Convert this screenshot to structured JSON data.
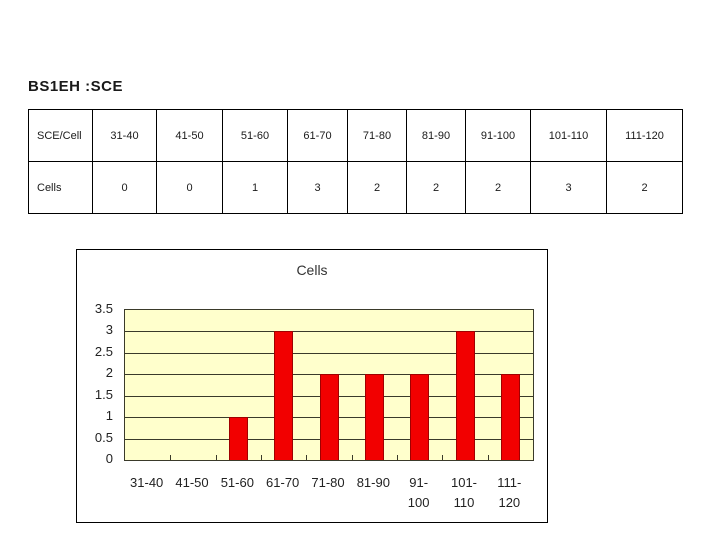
{
  "title": "BS1EH :SCE",
  "table": {
    "header": [
      "SCE/Cell",
      "31-40",
      "41-50",
      "51-60",
      "61-70",
      "71-80",
      "81-90",
      "91-100",
      "101-110",
      "111-120"
    ],
    "rows": [
      [
        "Cells",
        "0",
        "0",
        "1",
        "3",
        "2",
        "2",
        "2",
        "3",
        "2"
      ]
    ]
  },
  "chart_data": {
    "type": "bar",
    "title": "Cells",
    "categories": [
      "31-40",
      "41-50",
      "51-60",
      "61-70",
      "71-80",
      "81-90",
      "91-100",
      "101-110",
      "111-120"
    ],
    "values": [
      0,
      0,
      1,
      3,
      2,
      2,
      2,
      3,
      2
    ],
    "xlabel": "",
    "ylabel": "",
    "ylim": [
      0,
      3.5
    ],
    "ytick_step": 0.5,
    "ytick_labels": [
      "0",
      "0.5",
      "1",
      "1.5",
      "2",
      "2.5",
      "3",
      "3.5"
    ],
    "xtick_labels": [
      [
        "31-40"
      ],
      [
        "41-50"
      ],
      [
        "51-60"
      ],
      [
        "61-70"
      ],
      [
        "71-80"
      ],
      [
        "81-90"
      ],
      [
        "91-",
        "100"
      ],
      [
        "101-",
        "110"
      ],
      [
        "111-",
        "120"
      ]
    ],
    "grid": true,
    "legend_position": "none",
    "bar_color": "#f20000",
    "bar_border_color": "#a00000",
    "plot_bg_color": "#ffffcc",
    "gridline_color": "#3a3a2a"
  }
}
